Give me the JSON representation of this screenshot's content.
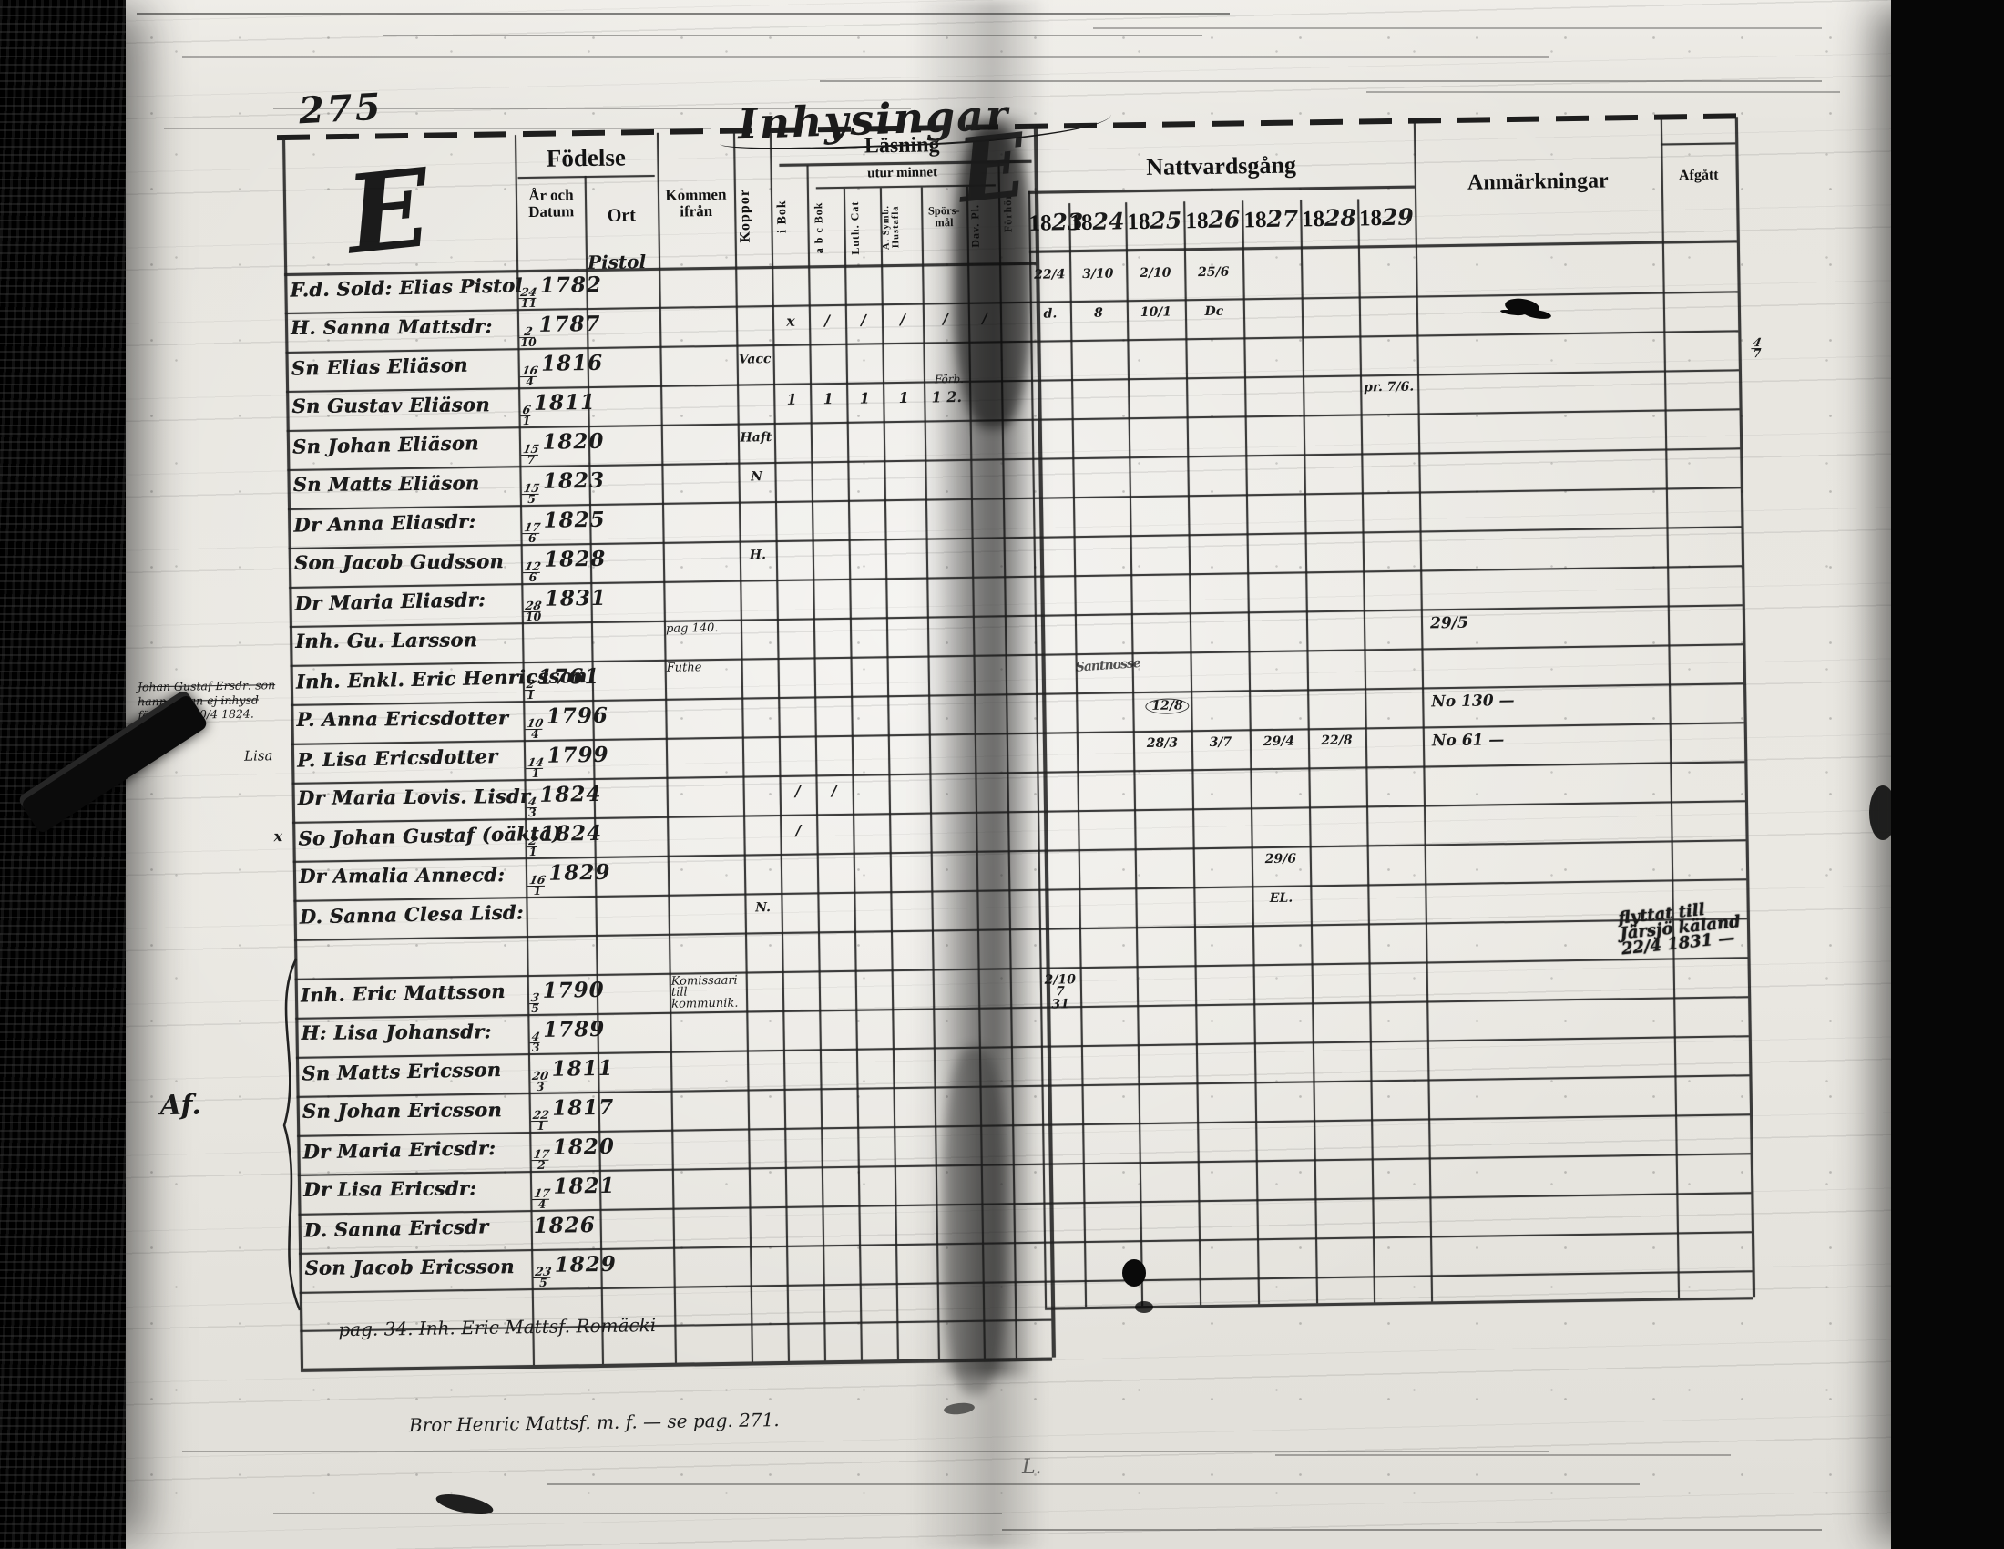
{
  "page": {
    "number": "275",
    "title": "Inhysingar",
    "monogram": "E",
    "flourish": "E"
  },
  "colors": {
    "ink": "#1b1b1b",
    "page": "#e9e6e0",
    "fold_shadow": "#2a2a2a"
  },
  "header": {
    "fodelse": "Födelse",
    "ar_och_datum": "År och Datum",
    "ort": "Ort",
    "kommen": "Kommen ifrån",
    "koppor": "Koppor",
    "lasning": "Läsning",
    "utur_minnet": "utur minnet",
    "reading_cols": [
      "i Bok",
      "a b c Bok",
      "Luth. Cat",
      "A. Symb. Hustafla",
      "Spörs-mål",
      "Dav. Pl.",
      "Förhör"
    ],
    "nattvardsgang": "Nattvardsgång",
    "years": [
      "1823",
      "1824",
      "1825",
      "1826",
      "1827",
      "1828",
      "1829"
    ],
    "anmarkningar": "Anmärkningar",
    "afgatt": "Afgått"
  },
  "rows": [
    {
      "name": "F.d. Sold: Elias Pistol",
      "bn": "24",
      "bd": "11",
      "by": "1782",
      "ort_note": "Pistol",
      "comm": {
        "1823": "22/4",
        "1824": "3/10",
        "1825": "2/10",
        "1826": "25/6"
      }
    },
    {
      "name": "H. Sanna Mattsdr:",
      "bn": "2",
      "bd": "10",
      "by": "1787",
      "reading": {
        "0": "x",
        "1": "/",
        "2": "/",
        "3": "/",
        "4": "/",
        "5": "/"
      },
      "comm": {
        "1823": "d.",
        "1824": "8",
        "1825": "10/1",
        "1826": "Dc"
      }
    },
    {
      "name": "Sn Elias Eliäson",
      "bn": "16",
      "bd": "4",
      "by": "1816",
      "koppor": "Vacc",
      "margin_right": "4/7"
    },
    {
      "name": "Sn Gustav Eliäson",
      "bn": "6",
      "bd": "1",
      "by": "1811",
      "reading": {
        "0": "1",
        "1": "1",
        "2": "1",
        "3": "1",
        "4": "1 2."
      },
      "spors_note": "Förb.",
      "comm": {
        "1829": "pr. 7/6."
      }
    },
    {
      "name": "Sn Johan Eliäson",
      "bn": "15",
      "bd": "7",
      "by": "1820",
      "koppor": "Haft"
    },
    {
      "name": "Sn Matts Eliäson",
      "bn": "15",
      "bd": "5",
      "by": "1823",
      "koppor": "N"
    },
    {
      "name": "Dr Anna Eliasdr:",
      "bn": "17",
      "bd": "6",
      "by": "1825"
    },
    {
      "name": "Son Jacob Gudsson",
      "bn": "12",
      "bd": "6",
      "by": "1828",
      "koppor": "H."
    },
    {
      "name": "Dr Maria Eliasdr:",
      "bn": "28",
      "bd": "10",
      "by": "1831"
    },
    {
      "name": "Inh. Gu. Larsson",
      "kommen_note": "pag 140.",
      "remark": "29/5"
    },
    {
      "name": "Inh. Enkl. Eric Henricsson",
      "bn": "2",
      "bd": "1",
      "by": "1761",
      "kommen_note": "Futhe",
      "comm": {
        "1824": "Santnosse"
      },
      "scrawl": true
    },
    {
      "name": "P. Anna Ericsdotter",
      "bn": "10",
      "bd": "4",
      "by": "1796",
      "remark": "No 130 —",
      "comm": {
        "1825": "12/8"
      },
      "comm_circle": true
    },
    {
      "name": "P. Lisa Ericsdotter",
      "bn": "14",
      "bd": "1",
      "by": "1799",
      "remark": "No 61 —",
      "comm": {
        "1825": "28/3",
        "1826": "3/7",
        "1827": "29/4",
        "1828": "22/8"
      }
    },
    {
      "name": "Dr Maria Lovis. Lisdr",
      "bn": "4",
      "bd": "3",
      "by": "1824",
      "reading": {
        "0": "/",
        "1": "/"
      }
    },
    {
      "name": "So Johan Gustaf (oäkta)",
      "bn": "2",
      "bd": "1",
      "by": "1824",
      "reading": {
        "0": "/"
      },
      "margin_left": "x"
    },
    {
      "name": "Dr Amalia Annecd:",
      "bn": "16",
      "bd": "1",
      "by": "1829",
      "comm": {
        "1827": "29/6"
      }
    },
    {
      "name": "D. Sanna Clesa Lisd:",
      "koppor": "N.",
      "comm": {
        "1827": "EL."
      }
    },
    {},
    {
      "name": "Inh. Eric Mattsson",
      "bn": "3",
      "bd": "5",
      "by": "1790",
      "kommen_note": "Komissaari\ntill kommunik.",
      "comm": {
        "1823": "2/10\n7\n31"
      }
    },
    {
      "name": "H: Lisa Johansdr:",
      "bn": "4",
      "bd": "3",
      "by": "1789"
    },
    {
      "name": "Sn Matts Ericsson",
      "bn": "20",
      "bd": "3",
      "by": "1811"
    },
    {
      "name": "Sn Johan Ericsson",
      "bn": "22",
      "bd": "1",
      "by": "1817"
    },
    {
      "name": "Dr Maria Ericsdr:",
      "bn": "17",
      "bd": "2",
      "by": "1820"
    },
    {
      "name": "Dr Lisa Ericsdr:",
      "bn": "17",
      "bd": "4",
      "by": "1821"
    },
    {
      "name": "D. Sanna Ericsdr",
      "by": "1826"
    },
    {
      "name": "Son Jacob Ericsson",
      "bn": "23",
      "bd": "5",
      "by": "1829"
    }
  ],
  "margin": {
    "block": {
      "l1": "Johan Gustaf Ersdr: son",
      "l2": "hanner kan ej inhysd",
      "l3": "förd före 10/4 1824.",
      "tag": "Lisa"
    },
    "af": "Af."
  },
  "afgatt_note": "flyttat till\nJärsjö käland\n22/4 1831 —",
  "footer": {
    "inside": "pag. 34. Inh. Eric Mattsf. Romäcki",
    "below": "Bror Henric Mattsf. m. f. — se pag. 271."
  },
  "faint_mark": "L."
}
